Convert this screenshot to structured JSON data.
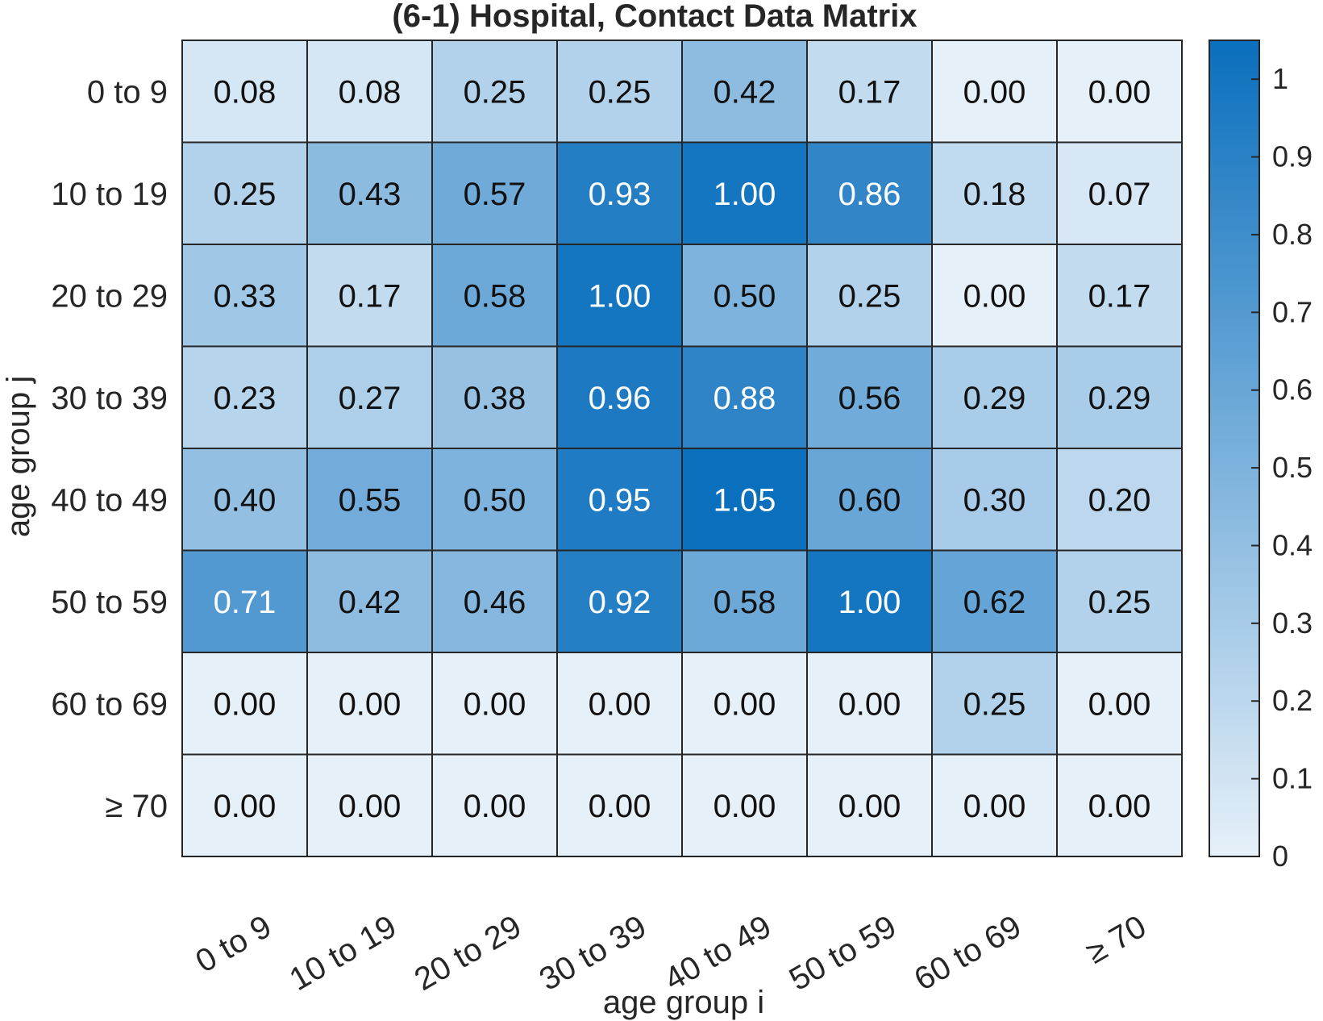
{
  "chart_data": {
    "type": "heatmap",
    "title": "(6-1) Hospital, Contact Data Matrix",
    "xlabel": "age group i",
    "ylabel": "age group j",
    "x_categories": [
      "0 to 9",
      "10 to 19",
      "20 to 29",
      "30 to 39",
      "40 to 49",
      "50 to 59",
      "60 to 69",
      "≥ 70"
    ],
    "y_categories": [
      "0 to 9",
      "10 to 19",
      "20 to 29",
      "30 to 39",
      "40 to 49",
      "50 to 59",
      "60 to 69",
      "≥ 70"
    ],
    "values": [
      [
        "0.08",
        "0.08",
        "0.25",
        "0.25",
        "0.42",
        "0.17",
        "0.00",
        "0.00"
      ],
      [
        "0.25",
        "0.43",
        "0.57",
        "0.93",
        "1.00",
        "0.86",
        "0.18",
        "0.07"
      ],
      [
        "0.33",
        "0.17",
        "0.58",
        "1.00",
        "0.50",
        "0.25",
        "0.00",
        "0.17"
      ],
      [
        "0.23",
        "0.27",
        "0.38",
        "0.96",
        "0.88",
        "0.56",
        "0.29",
        "0.29"
      ],
      [
        "0.40",
        "0.55",
        "0.50",
        "0.95",
        "1.05",
        "0.60",
        "0.30",
        "0.20"
      ],
      [
        "0.71",
        "0.42",
        "0.46",
        "0.92",
        "0.58",
        "1.00",
        "0.62",
        "0.25"
      ],
      [
        "0.00",
        "0.00",
        "0.00",
        "0.00",
        "0.00",
        "0.00",
        "0.25",
        "0.00"
      ],
      [
        "0.00",
        "0.00",
        "0.00",
        "0.00",
        "0.00",
        "0.00",
        "0.00",
        "0.00"
      ]
    ],
    "colorbar": {
      "range": [
        0,
        1.05
      ],
      "ticks": [
        "0",
        "0.1",
        "0.2",
        "0.3",
        "0.4",
        "0.5",
        "0.6",
        "0.7",
        "0.8",
        "0.9",
        "1"
      ]
    },
    "colors": {
      "low": "#e6f0f9",
      "high": "#0a6fbd",
      "text_dark": "#111111",
      "text_light": "#ffffff",
      "grid": "#262626"
    }
  }
}
